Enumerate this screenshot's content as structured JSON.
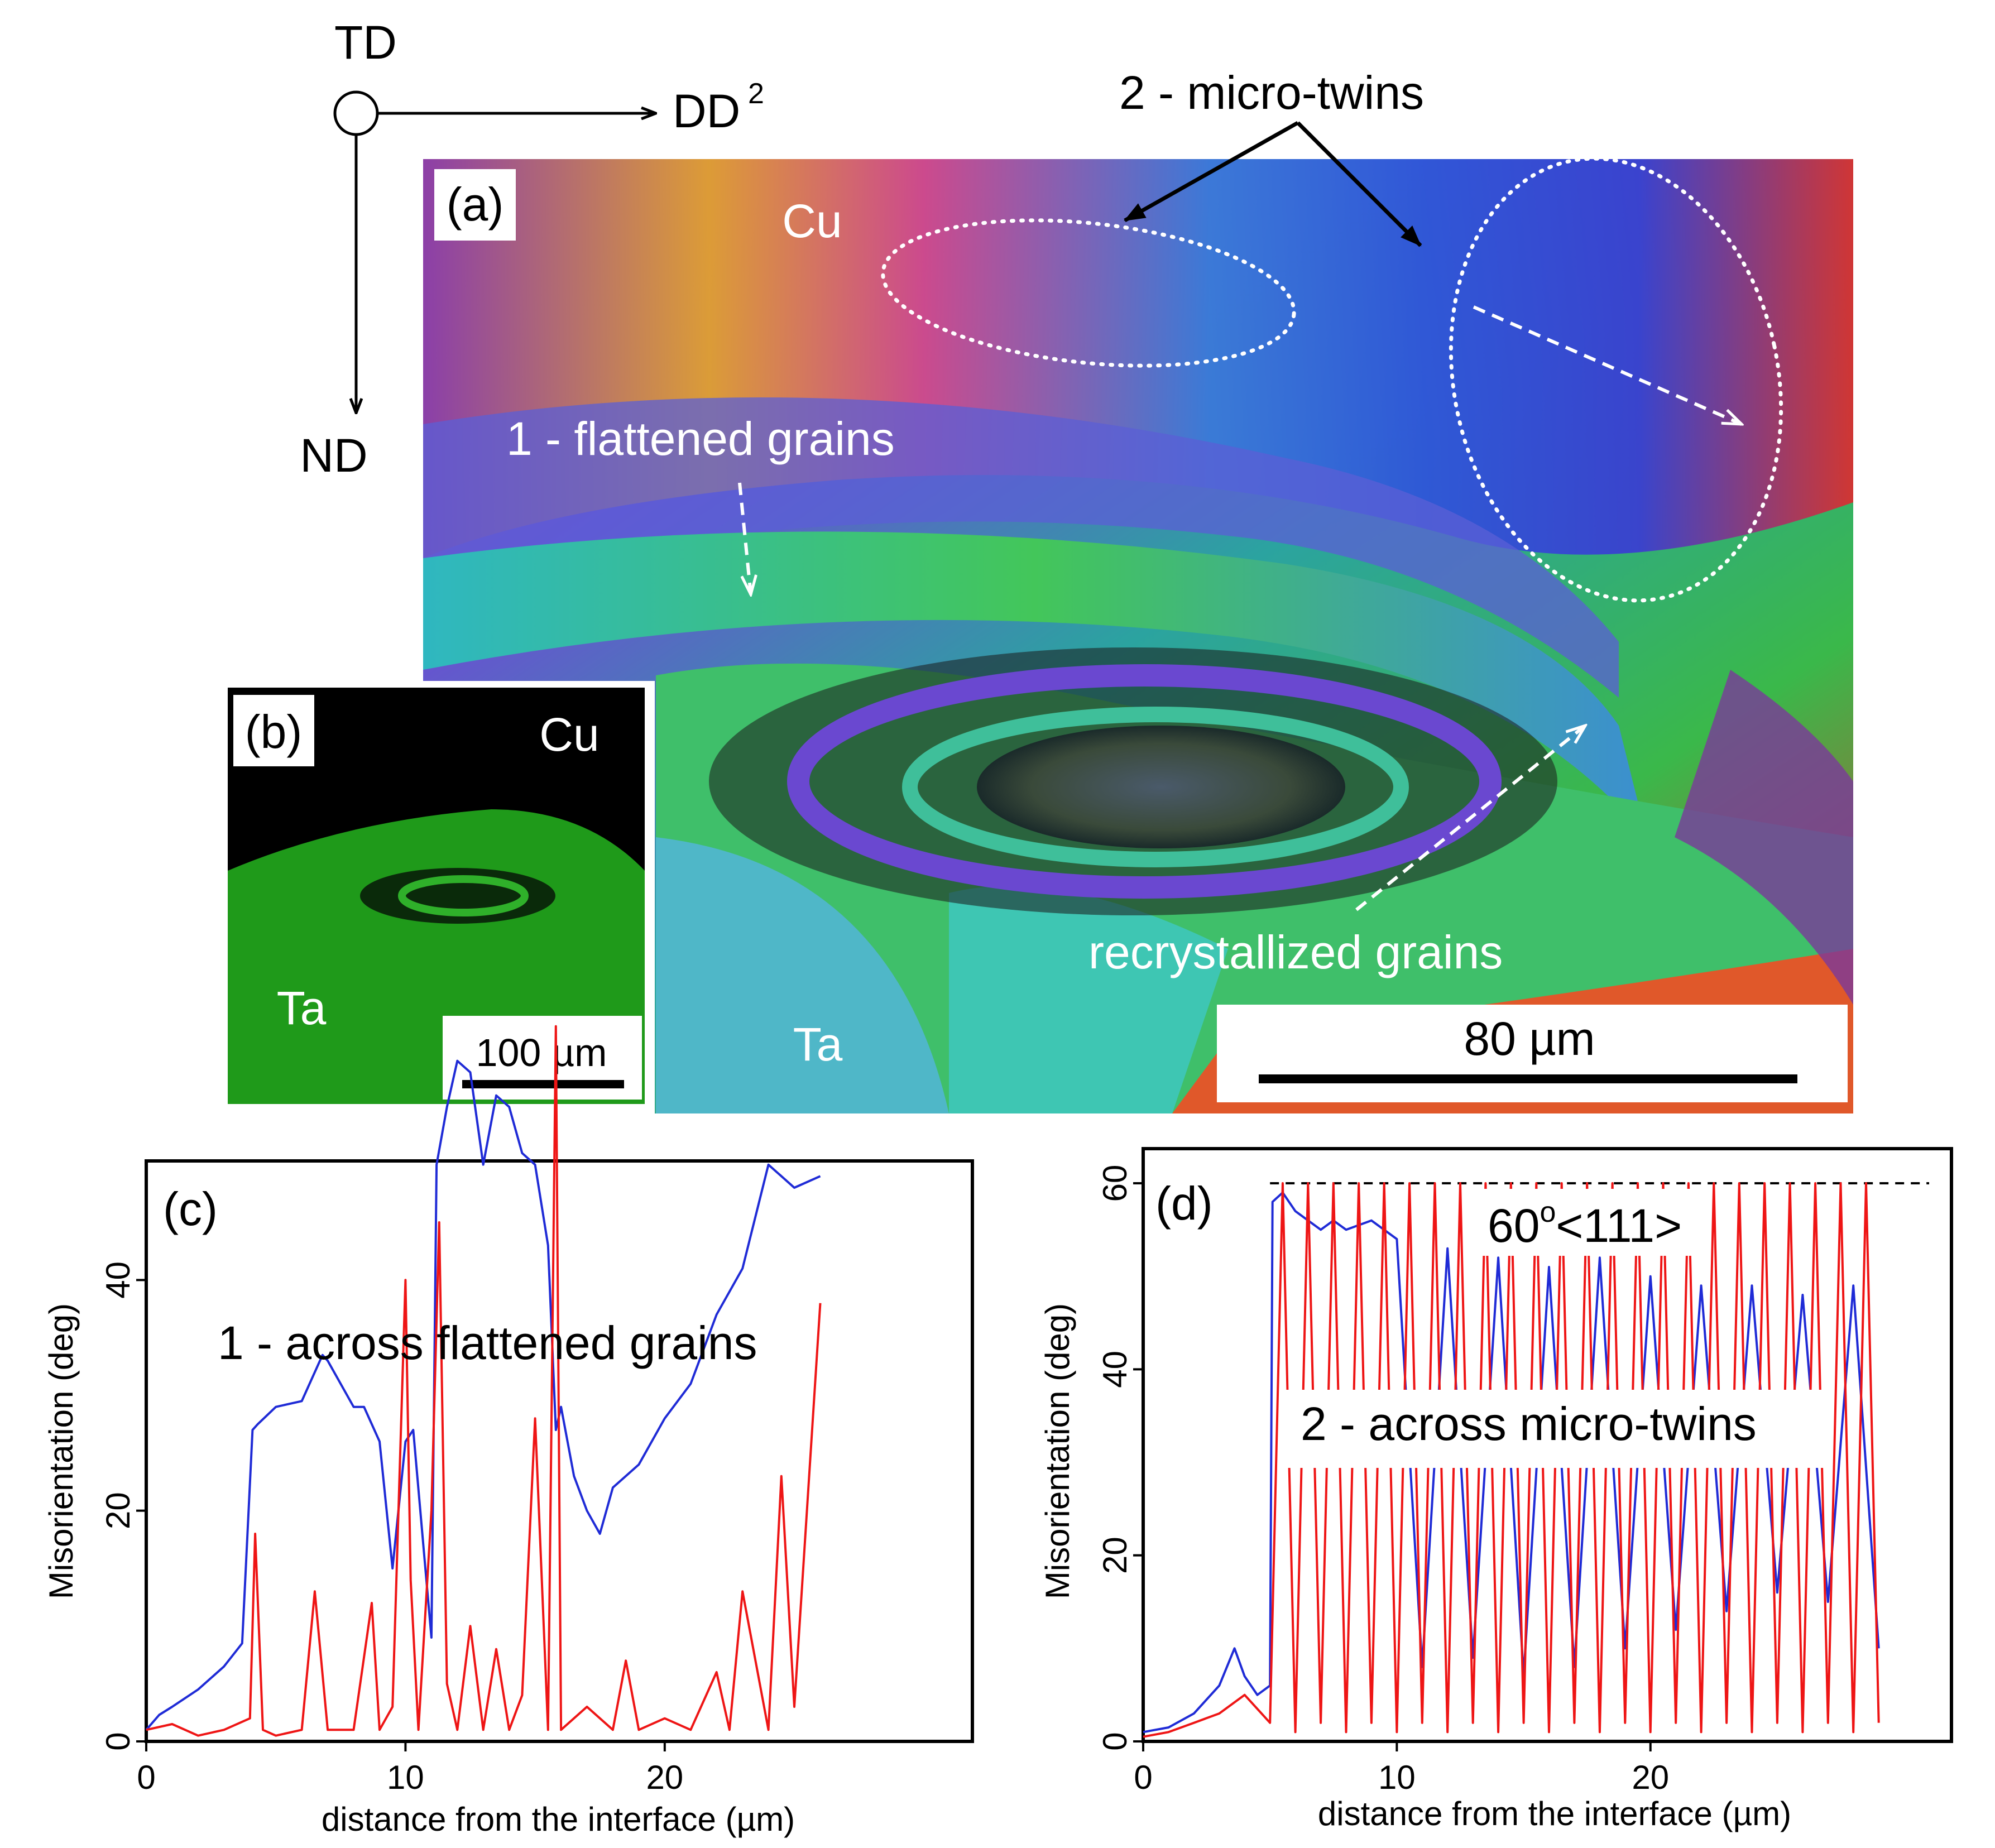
{
  "axes_triad": {
    "td": "TD",
    "dd": "DD",
    "dd_sup": "2",
    "nd": "ND"
  },
  "panel_a": {
    "tag": "(a)",
    "label_cu": "Cu",
    "label_ta": "Ta",
    "callout_twins": "2 - micro-twins",
    "callout_flattened": "1 - flattened grains",
    "callout_recrystallized": "recrystallized grains",
    "scale_bar": "80 µm"
  },
  "panel_b": {
    "tag": "(b)",
    "label_cu": "Cu",
    "label_ta": "Ta",
    "scale_bar": "100 µm",
    "colors": {
      "ta_phase": "#1f9a1a",
      "background": "#000000"
    }
  },
  "chart_data": [
    {
      "panel": "(c)",
      "type": "line",
      "annotation": "1 - across flattened grains",
      "xlabel": "distance from the interface (µm)",
      "ylabel": "Misorientation (deg)",
      "xlim": [
        0,
        29
      ],
      "ylim": [
        0,
        60
      ],
      "xticks": [
        0,
        10,
        20
      ],
      "yticks": [
        0,
        20,
        40
      ],
      "series": [
        {
          "color": "#1f2bd6",
          "x": [
            0,
            0.5,
            1,
            2,
            3,
            3.7,
            4.1,
            4.3,
            5,
            6,
            6.8,
            7,
            8,
            8.4,
            9,
            9.5,
            10,
            10.3,
            11,
            11.2,
            11.6,
            12,
            12.5,
            13,
            13.5,
            14,
            14.5,
            15,
            15.5,
            15.8,
            16,
            16.5,
            17,
            17.5,
            18,
            19,
            20,
            21,
            22,
            23,
            24,
            25,
            26
          ],
          "y": [
            1,
            2.3,
            3,
            4.5,
            6.5,
            8.5,
            27,
            27.5,
            29,
            29.5,
            33.5,
            33,
            29,
            29,
            26,
            15,
            26,
            27,
            9,
            50,
            55,
            59,
            58,
            50,
            56,
            55,
            51,
            50,
            43,
            27,
            29,
            23,
            20,
            18,
            22,
            24,
            28,
            31,
            37,
            41,
            50,
            48,
            49
          ]
        },
        {
          "color": "#ee1515",
          "x": [
            0,
            1,
            2,
            3,
            4,
            4.2,
            4.5,
            5,
            6,
            6.5,
            7,
            8,
            8.7,
            9,
            9.5,
            10,
            10.2,
            10.5,
            11,
            11.3,
            11.6,
            12,
            12.5,
            13,
            13.5,
            14,
            14.5,
            15,
            15.5,
            15.8,
            16,
            17,
            18,
            18.5,
            19,
            20,
            21,
            22,
            22.5,
            23,
            24,
            24.5,
            25,
            26
          ],
          "y": [
            1,
            1.5,
            0.5,
            1,
            2,
            18,
            1,
            0.5,
            1,
            13,
            1,
            1,
            12,
            1,
            3,
            40,
            14,
            1,
            20,
            45,
            5,
            1,
            10,
            1,
            8,
            1,
            4,
            28,
            1,
            62,
            1,
            3,
            1,
            7,
            1,
            2,
            1,
            6,
            1,
            13,
            1,
            23,
            3,
            38
          ]
        }
      ]
    },
    {
      "panel": "(d)",
      "type": "line",
      "annotation": "2 - across micro-twins",
      "reference_line": {
        "y": 60,
        "label": "60",
        "label_sup": "o",
        "label_tail": "<111>"
      },
      "xlabel": "distance from the interface (µm)",
      "ylabel": "Misorientation (deg)",
      "xlim": [
        0,
        29
      ],
      "ylim": [
        0,
        60
      ],
      "xticks": [
        0,
        10,
        20
      ],
      "yticks": [
        0,
        20,
        40,
        60
      ],
      "series": [
        {
          "color": "#1f2bd6",
          "x": [
            0,
            1,
            2,
            3,
            3.6,
            4,
            4.5,
            5,
            5.1,
            5.5,
            6,
            7,
            7.5,
            8,
            9,
            10,
            11,
            12,
            13,
            14,
            15,
            16,
            17,
            18,
            19,
            20,
            21,
            22,
            23,
            24,
            25,
            26,
            27,
            28,
            29
          ],
          "y": [
            1,
            1.5,
            3,
            6,
            10,
            7,
            5,
            6,
            58,
            59,
            57,
            55,
            56,
            55,
            56,
            54,
            8,
            53,
            9,
            52,
            7,
            51,
            8,
            52,
            10,
            50,
            12,
            49,
            14,
            49,
            16,
            48,
            15,
            49,
            10
          ]
        },
        {
          "color": "#ee1515",
          "x": [
            0,
            1,
            2,
            3,
            4,
            5,
            5.5,
            6,
            6.5,
            7,
            7.5,
            8,
            8.5,
            9,
            9.5,
            10,
            10.5,
            11,
            11.5,
            12,
            12.5,
            13,
            13.5,
            14,
            14.5,
            15,
            15.5,
            16,
            16.5,
            17,
            17.5,
            18,
            18.5,
            19,
            19.5,
            20,
            20.5,
            21,
            21.5,
            22,
            22.5,
            23,
            23.5,
            24,
            24.5,
            25,
            25.5,
            26,
            26.5,
            27,
            27.5,
            28,
            28.5,
            29
          ],
          "y": [
            0.5,
            1,
            2,
            3,
            5,
            2,
            60,
            1,
            60,
            2,
            60,
            1,
            60,
            2,
            60,
            1,
            60,
            2,
            60,
            1,
            60,
            2,
            60,
            1,
            60,
            2,
            60,
            1,
            60,
            2,
            60,
            1,
            60,
            2,
            60,
            1,
            60,
            2,
            60,
            1,
            60,
            2,
            60,
            1,
            60,
            2,
            60,
            1,
            60,
            2,
            60,
            1,
            60,
            2
          ]
        }
      ]
    }
  ]
}
